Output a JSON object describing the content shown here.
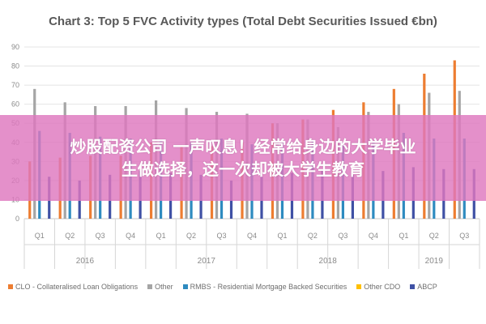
{
  "colors": {
    "CLO - Collateralised Loan Obligations": "#ed7d31",
    "Other": "#a5a5a5",
    "RMBS - Residential Mortgage Backed Securities": "#2e8bc0",
    "Other CDO": "#ffc000",
    "ABCP": "#3f51a5",
    "banner": "#de78be"
  },
  "chart_data": {
    "type": "bar",
    "title": "Chart 3: Top 5 FVC Activity types (Total Debt Securities Issued €bn)",
    "xlabel": "",
    "ylabel": "",
    "ylim": [
      0,
      90
    ],
    "yticks": [
      0,
      10,
      20,
      30,
      40,
      50,
      60,
      70,
      80,
      90
    ],
    "grid": true,
    "legend_position": "bottom",
    "categories": [
      "Q1",
      "Q2",
      "Q3",
      "Q4",
      "Q1",
      "Q2",
      "Q3",
      "Q4",
      "Q1",
      "Q2",
      "Q3",
      "Q4",
      "Q1",
      "Q2",
      "Q3"
    ],
    "years": [
      {
        "label": "2016",
        "count": 4
      },
      {
        "label": "2017",
        "count": 4
      },
      {
        "label": "2018",
        "count": 4
      },
      {
        "label": "2019",
        "count": 3
      }
    ],
    "series": [
      {
        "name": "CLO - Collateralised Loan Obligations",
        "values": [
          30,
          32,
          33,
          33,
          40,
          38,
          38,
          40,
          50,
          52,
          57,
          61,
          68,
          76,
          83
        ]
      },
      {
        "name": "Other",
        "values": [
          68,
          61,
          59,
          59,
          62,
          58,
          56,
          55,
          50,
          52,
          48,
          56,
          60,
          66,
          67
        ]
      },
      {
        "name": "RMBS - Residential Mortgage Backed Securities",
        "values": [
          46,
          45,
          43,
          42,
          41,
          40,
          42,
          39,
          40,
          41,
          40,
          40,
          45,
          42,
          42
        ]
      },
      {
        "name": "Other CDO",
        "values": [
          0,
          0,
          0,
          0,
          0,
          0,
          0,
          0,
          0,
          0,
          0,
          0,
          0,
          0,
          0
        ]
      },
      {
        "name": "ABCP",
        "values": [
          22,
          20,
          23,
          25,
          24,
          23,
          20,
          22,
          24,
          25,
          23,
          25,
          27,
          26,
          26
        ]
      }
    ]
  },
  "banner": {
    "line1": "炒股配资公司 一声叹息！经常给身边的大学毕业",
    "line2": "生做选择，这一次却被大学生教育"
  }
}
